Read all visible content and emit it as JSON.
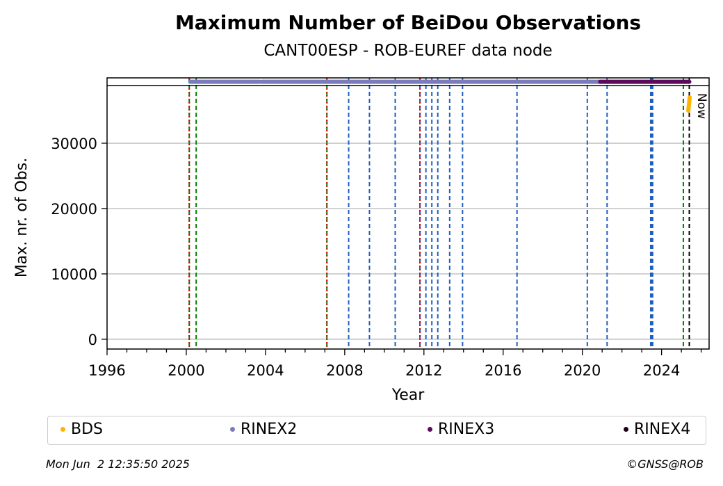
{
  "chart_data": {
    "type": "scatter",
    "title": "Maximum Number of BeiDou Observations",
    "subtitle": "CANT00ESP - ROB-EUREF data node",
    "xlabel": "Year",
    "ylabel": "Max. nr. of Obs.",
    "xlim": [
      1996,
      2026.4
    ],
    "ylim": [
      -1500,
      40000
    ],
    "x_ticks": [
      1996,
      2000,
      2004,
      2008,
      2012,
      2016,
      2020,
      2024
    ],
    "y_ticks": [
      0,
      10000,
      20000,
      30000
    ],
    "grid": "horizontal",
    "top_band_y": 38800,
    "series": [
      {
        "name": "BDS",
        "color": "#ffb400",
        "x": [
          2025.35,
          2025.42
        ],
        "y": [
          35000,
          37000
        ]
      },
      {
        "name": "RINEX2",
        "color": "#7b7bbd",
        "segments": [
          [
            2000.2,
            2003.7
          ],
          [
            2003.8,
            2020.9
          ]
        ],
        "y": 39400
      },
      {
        "name": "RINEX3",
        "color": "#5c0a5c",
        "segments": [
          [
            2020.9,
            2025.4
          ]
        ],
        "y": 39400
      },
      {
        "name": "RINEX4",
        "color": "#1a0014",
        "segments": []
      }
    ],
    "vlines": {
      "red_dotted": [
        2000.15,
        2007.1,
        2011.8
      ],
      "green_dashed": [
        2000.15,
        2000.5,
        2007.1,
        2011.8,
        2025.1
      ],
      "blue_dashed": [
        2008.2,
        2009.25,
        2010.55,
        2011.8,
        2012.1,
        2012.4,
        2012.7,
        2013.3,
        2013.95,
        2016.7,
        2020.25,
        2021.25,
        2023.45,
        2023.5,
        2023.55
      ],
      "black_dashed": [
        2025.4
      ]
    },
    "now_label": "Now"
  },
  "legend": [
    "BDS",
    "RINEX2",
    "RINEX3",
    "RINEX4"
  ],
  "footer": {
    "date": "Mon Jun  2 12:35:50 2025",
    "copyright": "©GNSS@ROB"
  }
}
